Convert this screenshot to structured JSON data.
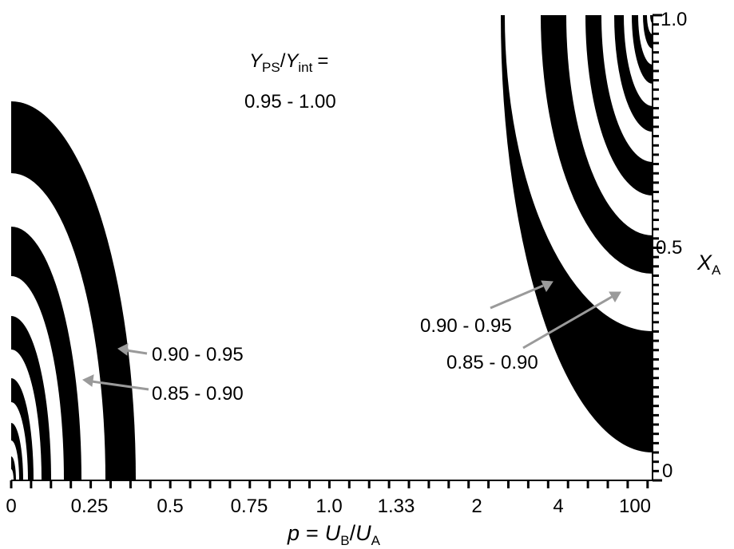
{
  "chart_data": {
    "type": "heatmap",
    "title": "",
    "x_axis": {
      "tick_labels": [
        "0",
        "0.25",
        "0.5",
        "0.75",
        "1.0",
        "1.33",
        "2",
        "4",
        "100"
      ],
      "title_var": "p",
      "title_eq": "=",
      "title_u1": "U",
      "title_u1_sub": "B",
      "title_slash": "/",
      "title_u2": "U",
      "title_u2_sub": "A"
    },
    "y_axis": {
      "tick_labels": [
        "0",
        "0.5",
        "1.0"
      ],
      "range": [
        0,
        1
      ],
      "title_var": "X",
      "title_sub": "A"
    },
    "header": {
      "num": "Y",
      "num_sub": "PS",
      "slash": "/",
      "den": "Y",
      "den_sub": "int",
      "eq": "=",
      "central_band": "0.95 - 1.00"
    },
    "annotations": {
      "left_upper": "0.90 - 0.95",
      "left_lower": "0.85 - 0.90",
      "right_upper": "0.90 - 0.95",
      "right_lower": "0.85 - 0.90"
    },
    "bands": [
      "0.95 - 1.00",
      "0.90 - 0.95",
      "0.85 - 0.90"
    ],
    "colors": {
      "band_dark": "#000000",
      "background": "#ffffff",
      "arrow": "#9a9a9a"
    }
  }
}
